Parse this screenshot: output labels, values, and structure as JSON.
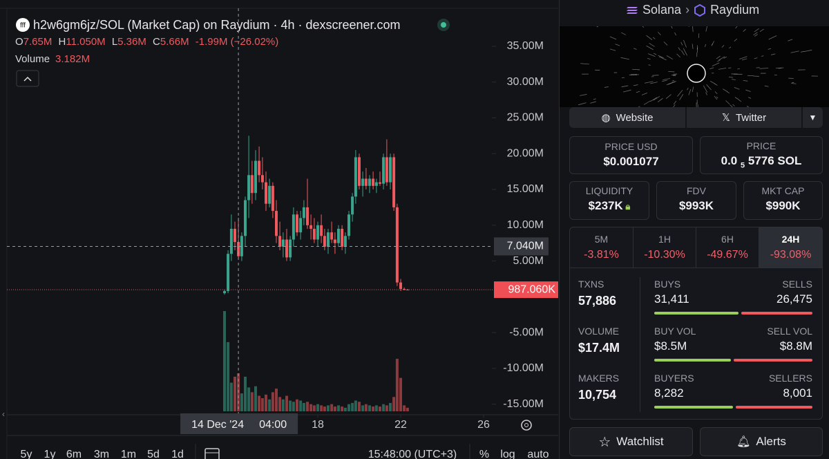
{
  "header": {
    "chain": "Solana",
    "dex": "Raydium"
  },
  "links": {
    "website": "Website",
    "twitter": "Twitter"
  },
  "chart": {
    "type": "candlestick",
    "title": "h2w6gm6jz/SOL (Market Cap) on Raydium · 4h · dexscreener.com",
    "ohlc": {
      "o_label": "O",
      "o": "7.65M",
      "h_label": "H",
      "h": "11.050M",
      "l_label": "L",
      "l": "5.36M",
      "c_label": "C",
      "c": "5.66M",
      "change": "-1.99M (−26.02%)"
    },
    "volume_label": "Volume",
    "volume_value": "3.182M",
    "ylim": [
      -16,
      40.5
    ],
    "yticks": [
      {
        "value": 35,
        "label": "35.00M"
      },
      {
        "value": 30,
        "label": "30.00M"
      },
      {
        "value": 25,
        "label": "25.00M"
      },
      {
        "value": 20,
        "label": "20.00M"
      },
      {
        "value": 15,
        "label": "15.00M"
      },
      {
        "value": 10,
        "label": "10.00M"
      },
      {
        "value": 5,
        "label": "5.00M"
      },
      {
        "value": -5,
        "label": "-5.00M"
      },
      {
        "value": -10,
        "label": "-10.00M"
      },
      {
        "value": -15,
        "label": "-15.00M"
      }
    ],
    "xlim": [
      3,
      29.6
    ],
    "xticks": [
      18,
      22,
      26
    ],
    "crosshair": {
      "x": 14.17,
      "date_label": "14 Dec '24",
      "time_label": "04:00",
      "value": 7.04,
      "label": "7.040M"
    },
    "last_price": {
      "value": 0.98706,
      "label": "987.060K"
    },
    "x": [
      13.5,
      13.67,
      13.83,
      14,
      14.17,
      14.33,
      14.5,
      14.67,
      14.83,
      15,
      15.17,
      15.33,
      15.5,
      15.67,
      15.83,
      16,
      16.17,
      16.33,
      16.5,
      16.67,
      16.83,
      17,
      17.17,
      17.33,
      17.5,
      17.67,
      17.83,
      18,
      18.17,
      18.33,
      18.5,
      18.67,
      18.83,
      19,
      19.17,
      19.33,
      19.5,
      19.67,
      19.83,
      20,
      20.17,
      20.33,
      20.5,
      20.67,
      20.83,
      21,
      21.17,
      21.33,
      21.5,
      21.67,
      21.83,
      22,
      22.17,
      22.33
    ],
    "candles": [
      [
        0.5,
        1.0,
        0.3,
        0.8
      ],
      [
        0.8,
        6.5,
        0.5,
        6.0
      ],
      [
        6.0,
        11.5,
        5.0,
        9.5
      ],
      [
        9.5,
        10.5,
        6.5,
        7.65
      ],
      [
        7.65,
        11.05,
        5.36,
        5.66
      ],
      [
        5.66,
        9.0,
        5.0,
        8.5
      ],
      [
        8.5,
        14.0,
        7.0,
        13.5
      ],
      [
        13.5,
        22.5,
        11.0,
        17.0
      ],
      [
        17.0,
        19.0,
        13.0,
        14.5
      ],
      [
        14.5,
        20.5,
        13.5,
        19.0
      ],
      [
        19.0,
        21.0,
        16.0,
        17.0
      ],
      [
        17.0,
        19.5,
        15.0,
        16.0
      ],
      [
        16.0,
        17.5,
        12.0,
        13.0
      ],
      [
        13.0,
        16.5,
        12.5,
        15.5
      ],
      [
        15.5,
        16.0,
        11.0,
        12.0
      ],
      [
        12.0,
        13.5,
        7.5,
        8.5
      ],
      [
        8.5,
        10.5,
        6.5,
        7.0
      ],
      [
        7.0,
        9.0,
        5.5,
        8.0
      ],
      [
        8.0,
        9.5,
        5.0,
        5.5
      ],
      [
        5.5,
        8.5,
        5.0,
        8.0
      ],
      [
        8.0,
        12.5,
        7.0,
        11.5
      ],
      [
        11.5,
        12.0,
        8.5,
        9.0
      ],
      [
        9.0,
        12.0,
        8.0,
        11.0
      ],
      [
        11.0,
        13.5,
        10.0,
        12.5
      ],
      [
        12.5,
        16.5,
        9.5,
        10.0
      ],
      [
        10.0,
        11.5,
        8.0,
        9.5
      ],
      [
        9.5,
        11.0,
        7.5,
        8.0
      ],
      [
        8.0,
        10.5,
        7.0,
        10.0
      ],
      [
        10.0,
        11.5,
        7.5,
        8.5
      ],
      [
        8.5,
        9.5,
        6.5,
        7.0
      ],
      [
        7.0,
        9.5,
        6.0,
        9.0
      ],
      [
        9.0,
        10.5,
        7.5,
        8.0
      ],
      [
        8.0,
        9.0,
        6.0,
        7.5
      ],
      [
        7.5,
        10.0,
        7.0,
        9.5
      ],
      [
        9.5,
        10.0,
        6.5,
        7.0
      ],
      [
        7.0,
        9.0,
        6.0,
        8.5
      ],
      [
        8.5,
        12.0,
        8.0,
        11.5
      ],
      [
        11.5,
        14.5,
        10.5,
        14.0
      ],
      [
        14.0,
        20.5,
        13.0,
        19.5
      ],
      [
        19.5,
        20.0,
        15.0,
        15.5
      ],
      [
        15.5,
        17.5,
        14.0,
        16.5
      ],
      [
        16.5,
        18.0,
        15.0,
        15.5
      ],
      [
        15.5,
        17.0,
        14.5,
        16.5
      ],
      [
        16.5,
        17.5,
        15.0,
        15.5
      ],
      [
        15.5,
        16.5,
        14.5,
        16.0
      ],
      [
        16.0,
        17.5,
        15.5,
        15.8
      ],
      [
        15.8,
        20.0,
        15.0,
        19.5
      ],
      [
        19.5,
        22.0,
        15.5,
        16.0
      ],
      [
        16.0,
        20.0,
        15.0,
        19.5
      ],
      [
        19.5,
        20.0,
        12.0,
        12.5
      ],
      [
        12.5,
        13.0,
        1.5,
        2.0
      ],
      [
        2.0,
        2.5,
        0.8,
        1.1
      ],
      [
        1.1,
        1.3,
        0.9,
        1.0
      ],
      [
        1.0,
        1.1,
        0.95,
        0.99
      ]
    ],
    "volume": [
      8.4,
      5.8,
      2.4,
      2.9,
      3.182,
      1.5,
      2.9,
      2.0,
      1.6,
      2.1,
      1.3,
      1.1,
      1.4,
      1.0,
      1.6,
      1.9,
      1.2,
      1.0,
      1.3,
      0.9,
      0.8,
      1.0,
      0.9,
      0.7,
      0.8,
      0.6,
      0.5,
      0.6,
      0.5,
      0.4,
      0.5,
      0.6,
      0.4,
      0.5,
      0.4,
      0.3,
      0.6,
      0.7,
      0.9,
      0.8,
      0.5,
      0.6,
      0.5,
      0.4,
      0.5,
      0.4,
      0.6,
      0.5,
      0.7,
      1.2,
      4.4,
      2.8,
      0.5,
      0.3
    ],
    "up_color": "#3aa58d",
    "down_color": "#ef5a5f"
  },
  "toolbar": {
    "ranges": [
      "5y",
      "1y",
      "6m",
      "3m",
      "1m",
      "5d",
      "1d"
    ],
    "clock": "15:48:00 (UTC+3)",
    "percent": "%",
    "log": "log",
    "auto": "auto"
  },
  "prices": {
    "usd_label": "PRICE USD",
    "usd": "$0.001077",
    "native_label": "PRICE",
    "native_lead": "0.0",
    "native_zeros": "5",
    "native_rest": "5776 SOL"
  },
  "metrics": [
    {
      "label": "LIQUIDITY",
      "value": "$237K"
    },
    {
      "label": "FDV",
      "value": "$993K"
    },
    {
      "label": "MKT CAP",
      "value": "$990K"
    }
  ],
  "timeframes": [
    {
      "label": "5M",
      "change": "-3.81%"
    },
    {
      "label": "1H",
      "change": "-10.30%"
    },
    {
      "label": "6H",
      "change": "-49.67%"
    },
    {
      "label": "24H",
      "change": "-93.08%"
    }
  ],
  "stats": {
    "txns_label": "TXNS",
    "txns": "57,886",
    "buys_label": "BUYS",
    "buys": {
      "value": 31411,
      "label": "31,411"
    },
    "sells_label": "SELLS",
    "sells": {
      "value": 26475,
      "label": "26,475"
    },
    "volume_label": "VOLUME",
    "volume": "$17.4M",
    "buy_vol_label": "BUY VOL",
    "buy_vol": {
      "value": 8500000,
      "label": "$8.5M"
    },
    "sell_vol_label": "SELL VOL",
    "sell_vol": {
      "value": 8800000,
      "label": "$8.8M"
    },
    "makers_label": "MAKERS",
    "makers": "10,754",
    "buyers_label": "BUYERS",
    "buyers": {
      "value": 8282,
      "label": "8,282"
    },
    "sellers_label": "SELLERS",
    "sellers": {
      "value": 8001,
      "label": "8,001"
    }
  },
  "actions": {
    "watchlist": "Watchlist",
    "alerts": "Alerts"
  }
}
